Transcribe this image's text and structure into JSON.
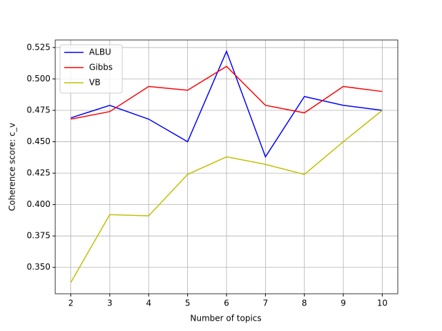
{
  "chart_data": {
    "type": "line",
    "x_label": "Number of topics",
    "y_label": "Coherence score: c_v",
    "x": [
      2,
      3,
      4,
      5,
      6,
      7,
      8,
      9,
      10
    ],
    "series": [
      {
        "name": "ALBU",
        "color": "#0000ff",
        "values": [
          0.469,
          0.479,
          0.468,
          0.45,
          0.522,
          0.438,
          0.486,
          0.479,
          0.475
        ]
      },
      {
        "name": "Gibbs",
        "color": "#ff0000",
        "values": [
          0.468,
          0.474,
          0.494,
          0.491,
          0.51,
          0.479,
          0.473,
          0.494,
          0.49
        ]
      },
      {
        "name": "VB",
        "color": "#bfbf00",
        "values": [
          0.338,
          0.392,
          0.391,
          0.424,
          0.438,
          0.432,
          0.424,
          0.45,
          0.475
        ]
      }
    ],
    "xlim": [
      1.6,
      10.4
    ],
    "xticks": [
      2,
      3,
      4,
      5,
      6,
      7,
      8,
      9,
      10
    ],
    "ylim": [
      0.329,
      0.531
    ],
    "yticks": [
      {
        "value": 0.35,
        "label": "0.350"
      },
      {
        "value": 0.375,
        "label": "0.375"
      },
      {
        "value": 0.4,
        "label": "0.400"
      },
      {
        "value": 0.425,
        "label": "0.425"
      },
      {
        "value": 0.45,
        "label": "0.450"
      },
      {
        "value": 0.475,
        "label": "0.475"
      },
      {
        "value": 0.5,
        "label": "0.500"
      },
      {
        "value": 0.525,
        "label": "0.525"
      }
    ],
    "grid": true,
    "legend": "upper left"
  }
}
